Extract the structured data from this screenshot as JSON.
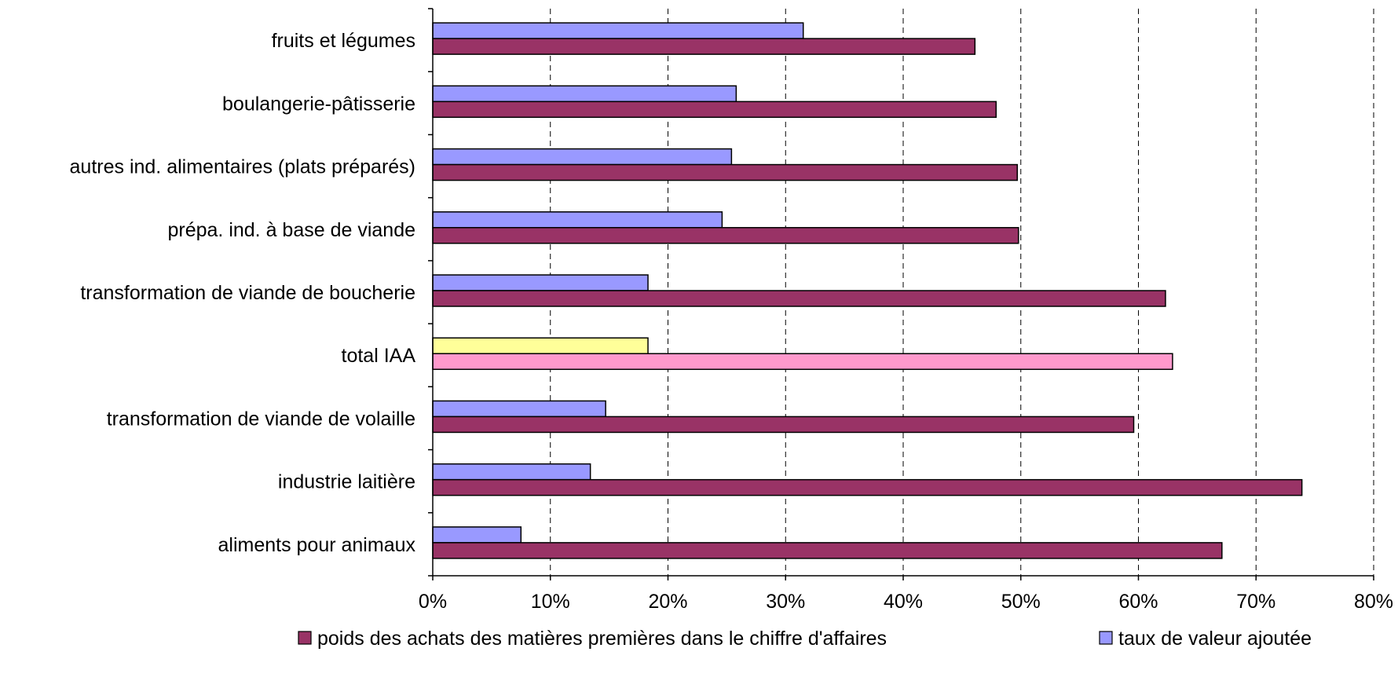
{
  "colors": {
    "purchases": "#993366",
    "value_added": "#9999FF",
    "total_purchases": "#FF99CC",
    "total_value_added": "#FFFF99",
    "bar_border": "#000000",
    "gridline": "#000000"
  },
  "chart_data": {
    "type": "bar",
    "orientation": "horizontal",
    "title": "",
    "xlabel": "",
    "ylabel": "",
    "xlim": [
      0,
      80
    ],
    "unit": "%",
    "ticks": [
      "0%",
      "10%",
      "20%",
      "30%",
      "40%",
      "50%",
      "60%",
      "70%",
      "80%"
    ],
    "tick_values": [
      0,
      10,
      20,
      30,
      40,
      50,
      60,
      70,
      80
    ],
    "grid": "vertical dashed",
    "legend_position": "bottom",
    "highlight_category": "total IAA",
    "categories": [
      "fruits et légumes",
      "boulangerie-pâtisserie",
      "autres ind. alimentaires (plats préparés)",
      "prépa. ind. à base de viande",
      "transformation de viande de boucherie",
      "total IAA",
      "transformation de viande de volaille",
      "industrie laitière",
      "aliments pour animaux"
    ],
    "series": [
      {
        "name": "taux de valeur ajoutée",
        "color": "#9999FF",
        "values": [
          31.5,
          25.8,
          25.4,
          24.6,
          18.3,
          18.3,
          14.7,
          13.4,
          7.5
        ]
      },
      {
        "name": "poids des achats des matières premières dans le chiffre d'affaires",
        "color": "#993366",
        "values": [
          46.1,
          47.9,
          49.7,
          49.8,
          62.3,
          62.9,
          59.6,
          73.9,
          67.1
        ]
      }
    ],
    "legend": [
      {
        "label": "poids des achats des matières premières dans le chiffre d'affaires",
        "color": "#993366"
      },
      {
        "label": "taux de valeur ajoutée",
        "color": "#9999FF"
      }
    ]
  }
}
